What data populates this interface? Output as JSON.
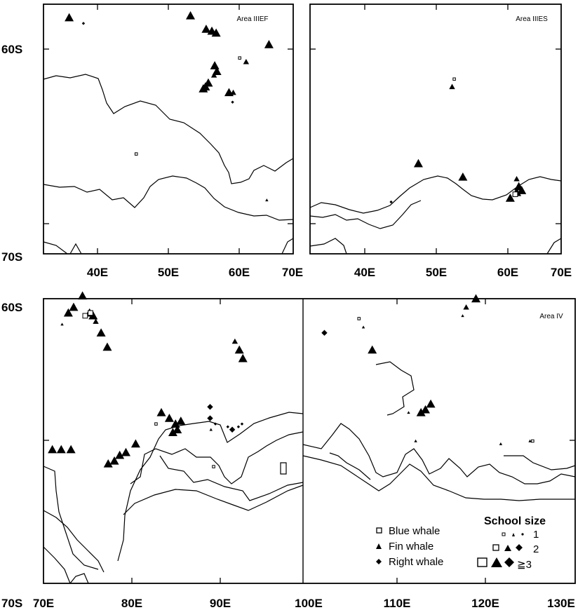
{
  "panels": {
    "p1": {
      "area": "Area IIIEF"
    },
    "p2": {
      "area": "Area IIIES"
    },
    "p3": {
      "area": "Area IV"
    }
  },
  "lat_labels": {
    "top_60": "60S",
    "top_70": "70S",
    "bot_60": "60S",
    "bot_70": "70S"
  },
  "lon_labels_top": [
    "40E",
    "50E",
    "60E",
    "70E",
    "40E",
    "50E",
    "60E",
    "70E"
  ],
  "lon_labels_bottom": [
    "70E",
    "80E",
    "90E",
    "100E",
    "110E",
    "120E",
    "130E"
  ],
  "legend": {
    "species": [
      "Blue whale",
      "Fin whale",
      "Right whale"
    ],
    "school_title": "School size",
    "sizes": [
      "1",
      "2",
      "≧3"
    ]
  },
  "chart_data": [
    {
      "type": "scatter",
      "title": "Area IIIEF",
      "xlim": [
        35,
        70
      ],
      "ylim": [
        70,
        57
      ],
      "x_ticks": [
        "40E",
        "50E",
        "60E",
        "70E"
      ],
      "y_ticks": [
        "60S",
        "70S"
      ],
      "series": [
        {
          "name": "Fin whale",
          "points": [
            [
              38.6,
              57.7,
              3
            ],
            [
              55.6,
              57.6,
              3
            ],
            [
              57.8,
              58.3,
              3
            ],
            [
              58.6,
              58.4,
              3
            ],
            [
              59.2,
              58.5,
              3
            ],
            [
              66.6,
              59.1,
              3
            ],
            [
              59.0,
              60.2,
              3
            ],
            [
              59.3,
              60.5,
              3
            ],
            [
              58.9,
              60.7,
              2
            ],
            [
              57.7,
              61.3,
              3
            ],
            [
              58.1,
              61.1,
              3
            ],
            [
              57.4,
              61.4,
              3
            ],
            [
              61.0,
              61.6,
              3
            ],
            [
              61.6,
              61.6,
              2
            ],
            [
              63.4,
              60.0,
              2
            ],
            [
              66.3,
              67.2,
              1
            ]
          ]
        },
        {
          "name": "Right whale",
          "points": [
            [
              40.6,
              58.0,
              1
            ],
            [
              61.5,
              62.1,
              1
            ]
          ]
        },
        {
          "name": "Blue whale",
          "points": [
            [
              62.5,
              59.8,
              1
            ],
            [
              48.0,
              64.8,
              1
            ]
          ]
        }
      ]
    },
    {
      "type": "scatter",
      "title": "Area IIIES",
      "xlim": [
        35,
        70
      ],
      "ylim": [
        70,
        57
      ],
      "x_ticks": [
        "40E",
        "50E",
        "60E",
        "70E"
      ],
      "y_ticks": [
        "60S",
        "70S"
      ],
      "series": [
        {
          "name": "Fin whale",
          "points": [
            [
              54.8,
              61.3,
              2
            ],
            [
              50.1,
              65.3,
              3
            ],
            [
              56.3,
              66.0,
              3
            ],
            [
              63.8,
              66.1,
              2
            ],
            [
              64.1,
              66.5,
              3
            ],
            [
              64.5,
              66.7,
              3
            ],
            [
              63.8,
              66.8,
              3
            ],
            [
              62.9,
              67.1,
              3
            ]
          ]
        },
        {
          "name": "Right whale",
          "points": [
            [
              46.3,
              67.3,
              1
            ]
          ]
        },
        {
          "name": "Blue whale",
          "points": [
            [
              55.1,
              60.9,
              1
            ],
            [
              63.6,
              66.9,
              2
            ]
          ]
        }
      ]
    },
    {
      "type": "scatter",
      "title": "Area IV",
      "xlim": [
        70,
        130
      ],
      "ylim": [
        70,
        60
      ],
      "x_ticks": [
        "70E",
        "80E",
        "90E",
        "100E",
        "110E",
        "120E",
        "130E"
      ],
      "y_ticks": [
        "60S",
        "70S"
      ],
      "series": [
        {
          "name": "Fin whale",
          "points": [
            [
              74.4,
              59.9,
              3
            ],
            [
              73.4,
              60.3,
              3
            ],
            [
              72.8,
              60.5,
              3
            ],
            [
              72.1,
              60.9,
              1
            ],
            [
              75.2,
              60.5,
              3
            ],
            [
              75.6,
              60.6,
              3
            ],
            [
              75.9,
              60.8,
              2
            ],
            [
              76.5,
              61.2,
              3
            ],
            [
              77.2,
              61.7,
              3
            ],
            [
              91.6,
              61.5,
              2
            ],
            [
              92.1,
              61.8,
              3
            ],
            [
              92.5,
              62.1,
              3
            ],
            [
              83.3,
              64.0,
              3
            ],
            [
              84.2,
              64.2,
              3
            ],
            [
              84.9,
              64.4,
              3
            ],
            [
              85.5,
              64.3,
              3
            ],
            [
              85.1,
              64.6,
              3
            ],
            [
              84.6,
              64.7,
              3
            ],
            [
              71.0,
              65.3,
              3
            ],
            [
              72.0,
              65.3,
              3
            ],
            [
              73.1,
              65.3,
              3
            ],
            [
              77.3,
              65.8,
              3
            ],
            [
              78.0,
              65.7,
              3
            ],
            [
              78.6,
              65.5,
              3
            ],
            [
              79.3,
              65.4,
              3
            ],
            [
              80.4,
              65.1,
              3
            ],
            [
              88.9,
              64.6,
              1
            ],
            [
              107.1,
              61.8,
              3
            ],
            [
              113.1,
              63.9,
              3
            ],
            [
              113.7,
              63.7,
              3
            ],
            [
              112.6,
              64.0,
              3
            ],
            [
              111.2,
              64.0,
              1
            ],
            [
              117.7,
              60.3,
              2
            ],
            [
              117.3,
              60.6,
              1
            ],
            [
              106.1,
              61.0,
              1
            ],
            [
              112.0,
              65.0,
              1
            ],
            [
              118.8,
              60.0,
              3
            ],
            [
              121.6,
              65.1,
              1
            ],
            [
              124.9,
              65.0,
              1
            ]
          ]
        },
        {
          "name": "Right whale",
          "points": [
            [
              101.7,
              61.2,
              2
            ],
            [
              88.8,
              63.8,
              2
            ],
            [
              88.8,
              64.2,
              2
            ],
            [
              89.4,
              64.4,
              1
            ],
            [
              90.8,
              64.5,
              1
            ],
            [
              92.0,
              64.5,
              1
            ],
            [
              92.4,
              64.4,
              1
            ],
            [
              91.3,
              64.6,
              2
            ]
          ]
        },
        {
          "name": "Blue whale",
          "points": [
            [
              74.7,
              60.6,
              2
            ],
            [
              75.3,
              60.5,
              2
            ],
            [
              82.7,
              64.4,
              1
            ],
            [
              89.2,
              65.9,
              1
            ],
            [
              105.6,
              60.7,
              1
            ],
            [
              125.2,
              65.0,
              1
            ]
          ]
        }
      ]
    }
  ]
}
